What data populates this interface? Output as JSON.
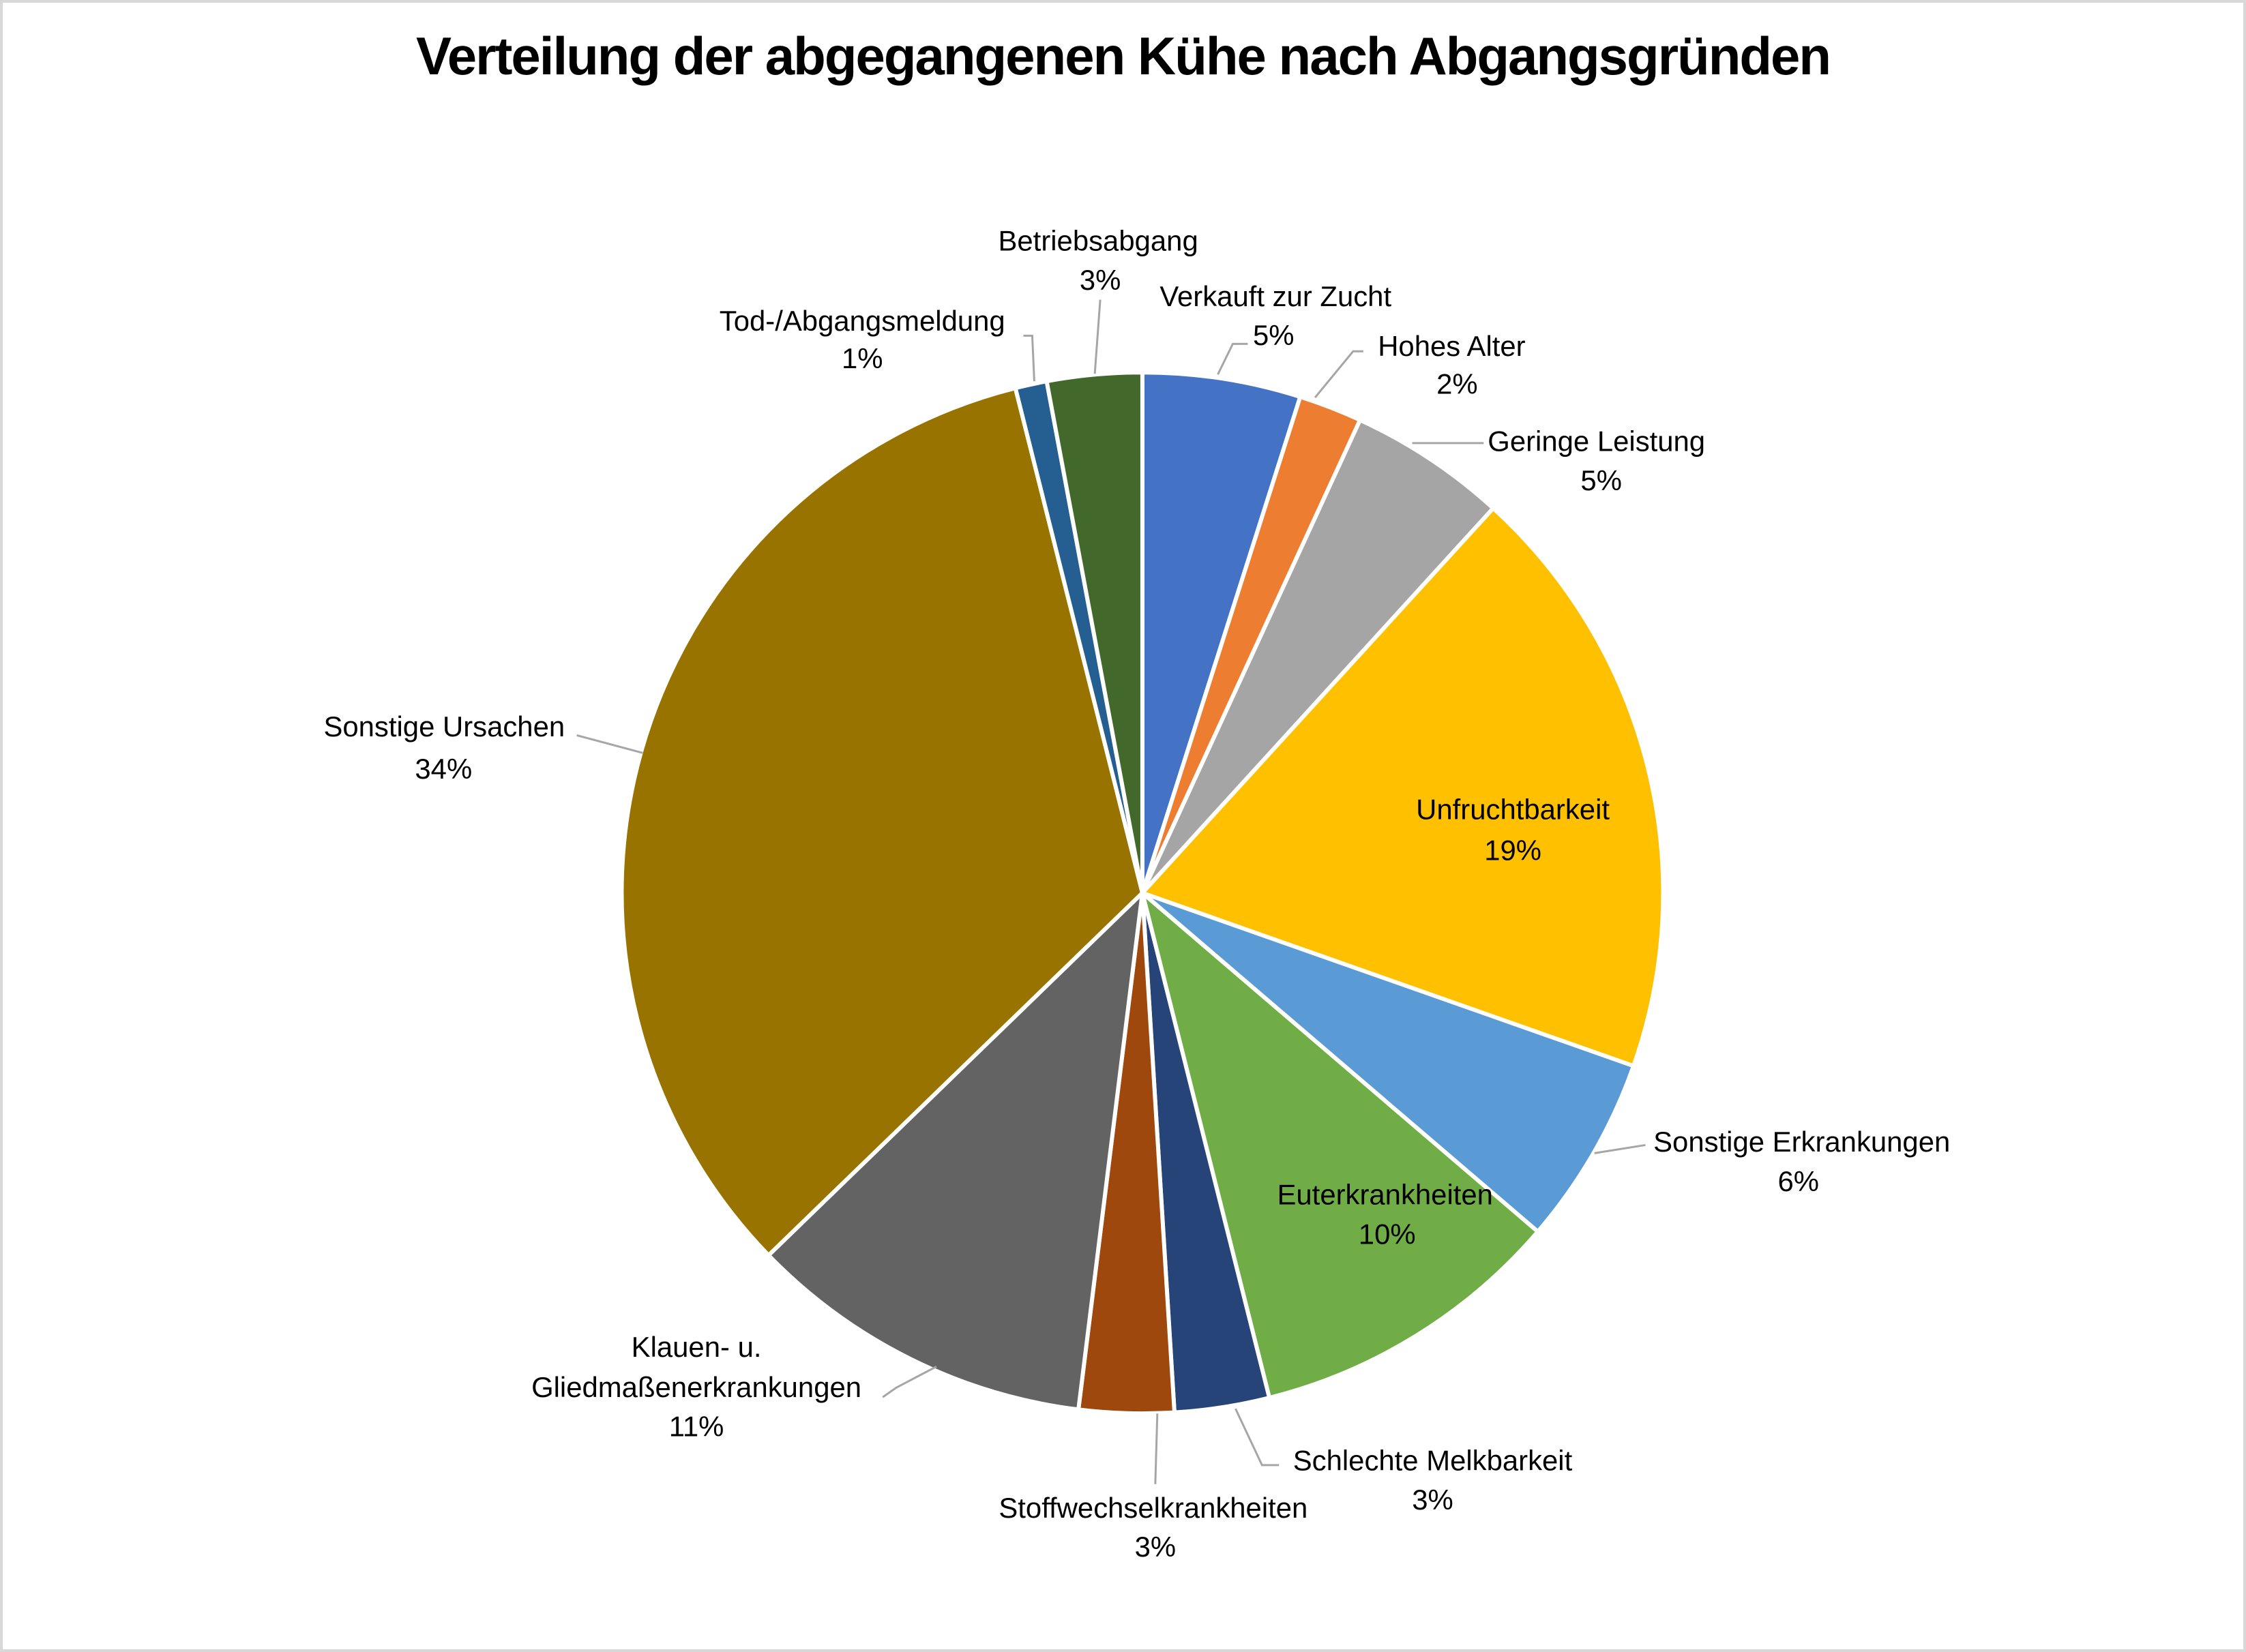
{
  "title": "Verteilung der abgegangenen Kühe nach Abgangsgründen",
  "chart_data": {
    "type": "pie",
    "title": "Verteilung der abgegangenen Kühe nach Abgangsgründen",
    "unit": "percent",
    "direction": "clockwise",
    "start_angle_deg": 0,
    "legend": "none",
    "grid": "off",
    "leader_line_color": "#A6A6A6",
    "label_text_color": "#000000",
    "background_color": "#FFFFFF",
    "slices": [
      {
        "id": "verkauft-zur-zucht",
        "label": "Verkauft zur Zucht",
        "value": 5,
        "pct_label": "5%",
        "color": "#4472C4",
        "label_position": "outside"
      },
      {
        "id": "hohes-alter",
        "label": "Hohes Alter",
        "value": 2,
        "pct_label": "2%",
        "color": "#ED7D31",
        "label_position": "outside"
      },
      {
        "id": "geringe-leistung",
        "label": "Geringe Leistung",
        "value": 5,
        "pct_label": "5%",
        "color": "#A5A5A5",
        "label_position": "outside"
      },
      {
        "id": "unfruchtbarkeit",
        "label": "Unfruchtbarkeit",
        "value": 19,
        "pct_label": "19%",
        "color": "#FFC000",
        "label_position": "inside"
      },
      {
        "id": "sonstige-erkrankungen",
        "label": "Sonstige Erkrankungen",
        "value": 6,
        "pct_label": "6%",
        "color": "#5B9BD5",
        "label_position": "outside"
      },
      {
        "id": "euterkrankheiten",
        "label": "Euterkrankheiten",
        "value": 10,
        "pct_label": "10%",
        "color": "#70AD47",
        "label_position": "inside"
      },
      {
        "id": "schlechte-melkbarkeit",
        "label": "Schlechte Melkbarkeit",
        "value": 3,
        "pct_label": "3%",
        "color": "#264478",
        "label_position": "outside"
      },
      {
        "id": "stoffwechselkrankheiten",
        "label": "Stoffwechselkrankheiten",
        "value": 3,
        "pct_label": "3%",
        "color": "#9E480E",
        "label_position": "outside"
      },
      {
        "id": "klauen-gliedmassenerkrankungen",
        "label": "Klauen- u. Gliedmaßenerkrankungen",
        "value": 11,
        "pct_label": "11%",
        "color": "#636363",
        "label_position": "outside"
      },
      {
        "id": "sonstige-ursachen",
        "label": "Sonstige Ursachen",
        "value": 34,
        "pct_label": "34%",
        "color": "#997300",
        "label_position": "outside"
      },
      {
        "id": "tod-abgangsmeldung",
        "label": "Tod-/Abgangsmeldung",
        "value": 1,
        "pct_label": "1%",
        "color": "#255E91",
        "label_position": "outside"
      },
      {
        "id": "betriebsabgang",
        "label": "Betriebsabgang",
        "value": 3,
        "pct_label": "3%",
        "color": "#43682B",
        "label_position": "outside"
      }
    ]
  }
}
